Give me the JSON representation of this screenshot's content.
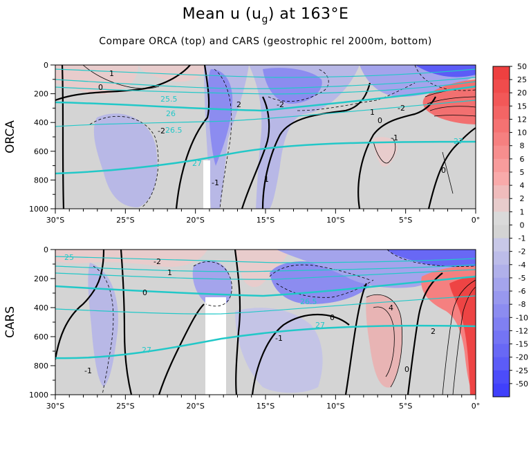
{
  "header": {
    "title_main": "Mean u (u",
    "title_sub": "g",
    "title_tail": ") at 163°E",
    "subtitle": "Compare ORCA (top) and CARS (geostrophic rel 2000m, bottom)"
  },
  "chart_data": [
    {
      "type": "heatmap",
      "panel": "ORCA",
      "ylabel": "ORCA",
      "xlim": [
        -30,
        0
      ],
      "ylim": [
        1000,
        0
      ],
      "xticks": [
        -30,
        -25,
        -20,
        -15,
        -10,
        -5,
        0
      ],
      "xticklabels": [
        "30°S",
        "25°S",
        "20°S",
        "15°S",
        "10°S",
        "5°S",
        "0°"
      ],
      "yticks": [
        0,
        200,
        400,
        600,
        800,
        1000
      ],
      "yticklabels": [
        "0",
        "200",
        "400",
        "600",
        "800",
        "1000"
      ],
      "contour_labels": [
        "1",
        "0",
        "-2",
        "2",
        "-1",
        "1",
        "-2",
        "0",
        "1",
        "-2",
        "-1",
        "0"
      ],
      "isopycnal_labels": [
        "25.5",
        "26",
        "26.5",
        "27",
        "27"
      ]
    },
    {
      "type": "heatmap",
      "panel": "CARS",
      "ylabel": "CARS",
      "xlim": [
        -30,
        0
      ],
      "ylim": [
        1000,
        0
      ],
      "xticks": [
        -30,
        -25,
        -20,
        -15,
        -10,
        -5,
        0
      ],
      "xticklabels": [
        "30°S",
        "25°S",
        "20°S",
        "15°S",
        "10°S",
        "5°S",
        "0°"
      ],
      "yticks": [
        0,
        200,
        400,
        600,
        800,
        1000
      ],
      "yticklabels": [
        "0",
        "200",
        "400",
        "600",
        "800",
        "1000"
      ],
      "contour_labels": [
        "-2",
        "0",
        "1",
        "-1",
        "0",
        "4",
        "-1",
        "0",
        "2"
      ],
      "isopycnal_labels": [
        "25",
        "26.5",
        "27",
        "27"
      ]
    }
  ],
  "colorbar": {
    "levels": [
      "50",
      "25",
      "20",
      "15",
      "12",
      "10",
      "8",
      "6",
      "5",
      "4",
      "2",
      "1",
      "0",
      "-1",
      "-2",
      "-4",
      "-5",
      "-6",
      "-8",
      "-10",
      "-12",
      "-15",
      "-20",
      "-25",
      "-50"
    ],
    "colors": [
      "#ee4040",
      "#f04c4c",
      "#f25858",
      "#f36565",
      "#f57272",
      "#f68080",
      "#f78e8e",
      "#f89c9c",
      "#f9aaaa",
      "#f0bcbc",
      "#e8cccc",
      "#dadada",
      "#d4d4d4",
      "#c8c8e8",
      "#bcbce9",
      "#b0b0ea",
      "#a4a4ec",
      "#9898ee",
      "#8c8cf0",
      "#8080f2",
      "#7474f4",
      "#6868f5",
      "#5c5cf7",
      "#4c4cf9",
      "#4040fb"
    ]
  },
  "colors": {
    "background_field": "#d4d4d4",
    "isopycnal": "#22c8c8",
    "contour": "#000000"
  }
}
